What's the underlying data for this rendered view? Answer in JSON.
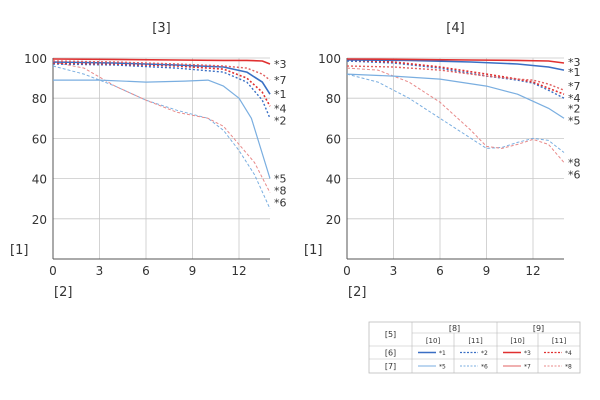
{
  "chart_data": [
    {
      "type": "line",
      "title": "[3]",
      "ylabel": "[1]",
      "xlabel": "[2]",
      "xlim": [
        0,
        14
      ],
      "ylim": [
        0,
        100
      ],
      "x_ticks": [
        "0",
        "3",
        "6",
        "9",
        "12"
      ],
      "y_ticks": [
        "20",
        "40",
        "60",
        "80",
        "100"
      ],
      "grid": true,
      "series": [
        {
          "name": "*3",
          "color": "#e03030",
          "width": 1.6,
          "dash": "",
          "points": [
            [
              0,
              99.5
            ],
            [
              4,
              99.3
            ],
            [
              8,
              99
            ],
            [
              11,
              98.8
            ],
            [
              12.5,
              98.8
            ],
            [
              13.5,
              98.5
            ],
            [
              14,
              97
            ]
          ]
        },
        {
          "name": "*7",
          "color": "#e06060",
          "width": 1.4,
          "dash": "2,2",
          "points": [
            [
              0,
              98.5
            ],
            [
              4,
              98
            ],
            [
              8,
              97
            ],
            [
              11,
              96
            ],
            [
              12.5,
              95
            ],
            [
              13.5,
              92
            ],
            [
              14,
              89
            ]
          ]
        },
        {
          "name": "*1",
          "color": "#3a6fc4",
          "width": 1.6,
          "dash": "",
          "points": [
            [
              0,
              98
            ],
            [
              4,
              97.5
            ],
            [
              8,
              96.5
            ],
            [
              11,
              95.5
            ],
            [
              12.5,
              93
            ],
            [
              13.5,
              88
            ],
            [
              14,
              82
            ]
          ]
        },
        {
          "name": "*4",
          "color": "#e03030",
          "width": 1.6,
          "dash": "2,2",
          "points": [
            [
              0,
              97.5
            ],
            [
              4,
              97
            ],
            [
              8,
              96
            ],
            [
              11,
              94.5
            ],
            [
              12.5,
              90
            ],
            [
              13.5,
              83
            ],
            [
              14,
              76
            ]
          ]
        },
        {
          "name": "*2",
          "color": "#3a6fc4",
          "width": 1.4,
          "dash": "2,2",
          "points": [
            [
              0,
              97
            ],
            [
              4,
              96.5
            ],
            [
              8,
              95
            ],
            [
              11,
              93
            ],
            [
              12.5,
              88
            ],
            [
              13.5,
              79
            ],
            [
              14,
              70
            ]
          ]
        },
        {
          "name": "*5",
          "color": "#7aaee0",
          "width": 1.2,
          "dash": "",
          "points": [
            [
              0,
              89
            ],
            [
              3,
              89
            ],
            [
              6,
              88
            ],
            [
              8.5,
              88.5
            ],
            [
              10,
              89
            ],
            [
              11,
              86
            ],
            [
              12,
              80
            ],
            [
              12.8,
              70
            ],
            [
              13.4,
              55
            ],
            [
              14,
              40
            ]
          ]
        },
        {
          "name": "*8",
          "color": "#e88a8a",
          "width": 1.0,
          "dash": "3,2",
          "points": [
            [
              0,
              98
            ],
            [
              2,
              95
            ],
            [
              4,
              86
            ],
            [
              6,
              79
            ],
            [
              8,
              73
            ],
            [
              10,
              70
            ],
            [
              11,
              66
            ],
            [
              12,
              57
            ],
            [
              13,
              48
            ],
            [
              14,
              33
            ]
          ]
        },
        {
          "name": "*6",
          "color": "#7aaee0",
          "width": 1.0,
          "dash": "3,2",
          "points": [
            [
              0,
              96
            ],
            [
              2,
              92
            ],
            [
              4,
              86
            ],
            [
              6,
              79
            ],
            [
              8,
              74
            ],
            [
              10,
              70
            ],
            [
              11,
              64
            ],
            [
              12,
              54
            ],
            [
              13,
              42
            ],
            [
              14,
              25
            ]
          ]
        }
      ],
      "right_labels": [
        {
          "text": "*3",
          "y": 97
        },
        {
          "text": "*7",
          "y": 89
        },
        {
          "text": "*1",
          "y": 82
        },
        {
          "text": "*4",
          "y": 75
        },
        {
          "text": "*2",
          "y": 69
        },
        {
          "text": "*5",
          "y": 40
        },
        {
          "text": "*8",
          "y": 34
        },
        {
          "text": "*6",
          "y": 28
        }
      ]
    },
    {
      "type": "line",
      "title": "[4]",
      "ylabel": "[1]",
      "xlabel": "[2]",
      "xlim": [
        0,
        14
      ],
      "ylim": [
        0,
        100
      ],
      "x_ticks": [
        "0",
        "3",
        "6",
        "9",
        "12"
      ],
      "y_ticks": [
        "20",
        "40",
        "60",
        "80",
        "100"
      ],
      "grid": true,
      "series": [
        {
          "name": "*3",
          "color": "#e03030",
          "width": 1.6,
          "dash": "",
          "points": [
            [
              0,
              99.5
            ],
            [
              4,
              99.3
            ],
            [
              8,
              99
            ],
            [
              11,
              98.8
            ],
            [
              13,
              98.5
            ],
            [
              14,
              97.5
            ]
          ]
        },
        {
          "name": "*1",
          "color": "#3a6fc4",
          "width": 1.6,
          "dash": "",
          "points": [
            [
              0,
              99
            ],
            [
              4,
              98.8
            ],
            [
              8,
              98
            ],
            [
              11,
              97
            ],
            [
              13,
              95.5
            ],
            [
              14,
              94
            ]
          ]
        },
        {
          "name": "*7",
          "color": "#e06060",
          "width": 1.4,
          "dash": "2,2",
          "points": [
            [
              0,
              96
            ],
            [
              3,
              95.5
            ],
            [
              6,
              94
            ],
            [
              9,
              91
            ],
            [
              11,
              89.5
            ],
            [
              12,
              89
            ],
            [
              13,
              87
            ],
            [
              14,
              84
            ]
          ]
        },
        {
          "name": "*4",
          "color": "#e03030",
          "width": 1.6,
          "dash": "2,2",
          "points": [
            [
              0,
              99
            ],
            [
              3,
              98
            ],
            [
              6,
              95.5
            ],
            [
              9,
              92
            ],
            [
              11,
              89.5
            ],
            [
              12,
              88
            ],
            [
              13,
              85
            ],
            [
              14,
              82
            ]
          ]
        },
        {
          "name": "*2",
          "color": "#3a6fc4",
          "width": 1.4,
          "dash": "2,2",
          "points": [
            [
              0,
              98.5
            ],
            [
              3,
              97.5
            ],
            [
              6,
              95
            ],
            [
              9,
              91
            ],
            [
              11,
              89
            ],
            [
              12,
              87.5
            ],
            [
              13,
              84
            ],
            [
              14,
              80
            ]
          ]
        },
        {
          "name": "*5",
          "color": "#7aaee0",
          "width": 1.2,
          "dash": "",
          "points": [
            [
              0,
              92
            ],
            [
              3,
              91
            ],
            [
              6,
              89.5
            ],
            [
              9,
              86
            ],
            [
              11,
              82
            ],
            [
              13,
              75
            ],
            [
              14,
              70
            ]
          ]
        },
        {
          "name": "*8",
          "color": "#e88a8a",
          "width": 1.0,
          "dash": "3,2",
          "points": [
            [
              0,
              95
            ],
            [
              2,
              94
            ],
            [
              4,
              88
            ],
            [
              6,
              78
            ],
            [
              8,
              64
            ],
            [
              9,
              56
            ],
            [
              10,
              55
            ],
            [
              11,
              57
            ],
            [
              12,
              59.5
            ],
            [
              13,
              57
            ],
            [
              14,
              48
            ]
          ]
        },
        {
          "name": "*6",
          "color": "#7aaee0",
          "width": 1.0,
          "dash": "3,2",
          "points": [
            [
              0,
              92
            ],
            [
              2,
              88
            ],
            [
              4,
              80
            ],
            [
              6,
              70
            ],
            [
              8,
              60
            ],
            [
              9,
              55
            ],
            [
              10,
              55.5
            ],
            [
              11,
              58
            ],
            [
              12,
              60
            ],
            [
              13,
              59
            ],
            [
              14,
              53
            ]
          ]
        }
      ],
      "right_labels": [
        {
          "text": "*3",
          "y": 98
        },
        {
          "text": "*1",
          "y": 93
        },
        {
          "text": "*7",
          "y": 86
        },
        {
          "text": "*4",
          "y": 80
        },
        {
          "text": "*2",
          "y": 75
        },
        {
          "text": "*5",
          "y": 69
        },
        {
          "text": "*8",
          "y": 48
        },
        {
          "text": "*6",
          "y": 42
        }
      ]
    }
  ],
  "legend_table": {
    "corner": "[5]",
    "group_headers": [
      "[8]",
      "[9]"
    ],
    "sub_headers": [
      "[10]",
      "[11]",
      "[10]",
      "[11]"
    ],
    "rows": [
      {
        "label": "[6]",
        "entries": [
          {
            "text": "*1",
            "color": "#3a6fc4",
            "dash": "",
            "width": 1.4
          },
          {
            "text": "*2",
            "color": "#3a6fc4",
            "dash": "2,1.5",
            "width": 1.2
          },
          {
            "text": "*3",
            "color": "#e03030",
            "dash": "",
            "width": 1.6
          },
          {
            "text": "*4",
            "color": "#e03030",
            "dash": "2,1.5",
            "width": 1.2
          }
        ]
      },
      {
        "label": "[7]",
        "entries": [
          {
            "text": "*5",
            "color": "#7aaee0",
            "dash": "",
            "width": 1.0
          },
          {
            "text": "*6",
            "color": "#7aaee0",
            "dash": "2,1.5",
            "width": 1.0
          },
          {
            "text": "*7",
            "color": "#e06060",
            "dash": "",
            "width": 1.0
          },
          {
            "text": "*8",
            "color": "#e88a8a",
            "dash": "2,1.5",
            "width": 1.0
          }
        ]
      }
    ]
  }
}
